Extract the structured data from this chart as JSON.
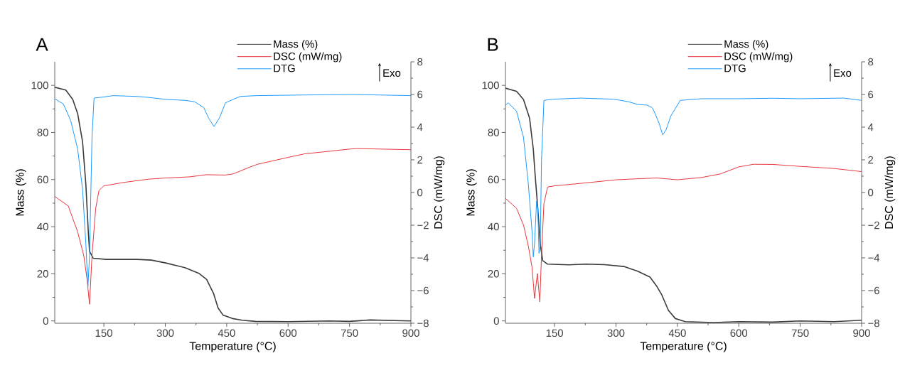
{
  "chart_data": [
    {
      "type": "line",
      "title": "A",
      "xlabel": "Temperature (°C)",
      "ylabel": "Mass (%)",
      "y2label": "DSC (mW/mg)",
      "annotations": [
        "Exo"
      ],
      "legend": "top right",
      "xlim": [
        30,
        900
      ],
      "xticks": [
        150,
        300,
        450,
        600,
        750,
        900
      ],
      "ylim": [
        -1,
        110
      ],
      "yticks": [
        0,
        20,
        40,
        60,
        80,
        100
      ],
      "y2lim": [
        -8,
        8
      ],
      "y2ticks": [
        {
          "value": -8,
          "label": "−8"
        },
        {
          "value": -6,
          "label": "−6"
        },
        {
          "value": -4,
          "label": "−4"
        },
        {
          "value": -2,
          "label": "−2"
        },
        0,
        2,
        4,
        6,
        8
      ],
      "series": [
        {
          "name": "Mass (%)",
          "color": "#3c3c3c",
          "x": [
            30,
            57,
            74,
            86,
            98,
            106,
            112,
            115,
            124,
            156,
            231,
            266,
            301,
            348,
            383,
            401,
            418,
            429,
            441,
            464,
            488,
            520,
            600,
            700,
            750,
            800,
            900
          ],
          "values": [
            99.2,
            98,
            94,
            88,
            76,
            58,
            37.7,
            29.6,
            26.6,
            26.1,
            26.1,
            25.8,
            24.6,
            22.6,
            20.1,
            17.6,
            11.6,
            5.5,
            2.5,
            1,
            0.3,
            -0.2,
            -0.3,
            0,
            -0.2,
            0.4,
            0
          ]
        },
        {
          "name": "DSC (mW/mg)",
          "color": "#e8383d",
          "axis": "y2",
          "x": [
            30,
            63,
            86,
            101,
            109,
            115,
            121,
            130,
            138,
            150,
            202,
            260,
            301,
            360,
            401,
            447,
            466,
            501,
            524,
            600,
            641,
            699,
            750,
            769,
            900
          ],
          "values": [
            -0.24,
            -0.82,
            -2.41,
            -3.87,
            -5.32,
            -6.84,
            -3.87,
            -0.97,
            0.12,
            0.41,
            0.63,
            0.82,
            0.89,
            0.96,
            1.09,
            1.07,
            1.14,
            1.5,
            1.72,
            2.15,
            2.37,
            2.52,
            2.66,
            2.69,
            2.62
          ]
        },
        {
          "name": "DTG",
          "color": "#1e9bff",
          "axis": "y2",
          "x": [
            30,
            51,
            69,
            86,
            98,
            106,
            111,
            115,
            121,
            126,
            150,
            173,
            231,
            260,
            301,
            348,
            371,
            394,
            406,
            419,
            432,
            447,
            466,
            483,
            524,
            641,
            757,
            900
          ],
          "values": [
            5.74,
            5.42,
            4.4,
            2.66,
            0.19,
            -3.14,
            -5.82,
            -3.86,
            3.39,
            5.78,
            5.85,
            5.93,
            5.88,
            5.82,
            5.7,
            5.64,
            5.56,
            5.2,
            4.55,
            4.04,
            4.55,
            5.49,
            5.7,
            5.88,
            5.93,
            5.97,
            6.0,
            5.93
          ]
        }
      ]
    },
    {
      "type": "line",
      "title": "B",
      "xlabel": "Temperature (°C)",
      "ylabel": "Mass (%)",
      "y2label": "DSC (mW/mg)",
      "annotations": [
        "Exo"
      ],
      "legend": "top right",
      "xlim": [
        30,
        900
      ],
      "xticks": [
        150,
        300,
        450,
        600,
        750,
        900
      ],
      "ylim": [
        -1,
        110
      ],
      "yticks": [
        0,
        20,
        40,
        60,
        80,
        100
      ],
      "y2lim": [
        -8,
        8
      ],
      "y2ticks": [
        {
          "value": -8,
          "label": "−8"
        },
        {
          "value": -6,
          "label": "−6"
        },
        {
          "value": -4,
          "label": "−4"
        },
        {
          "value": -2,
          "label": "−2"
        },
        0,
        2,
        4,
        6,
        8
      ],
      "series": [
        {
          "name": "Mass (%)",
          "color": "#3c3c3c",
          "x": [
            30,
            57,
            74,
            89,
            98,
            103,
            109,
            115,
            121,
            133,
            185,
            226,
            272,
            319,
            353,
            383,
            400,
            412,
            428,
            445,
            469,
            538,
            600,
            683,
            750,
            833,
            900
          ],
          "values": [
            98.8,
            97.5,
            94,
            86,
            72.9,
            60.8,
            47.7,
            32.7,
            25.6,
            24.1,
            23.8,
            24.1,
            23.9,
            23.1,
            21.1,
            18.6,
            14.6,
            11,
            4.5,
            1,
            -0.3,
            -0.7,
            -0.3,
            -0.5,
            0,
            -0.3,
            0.3
          ]
        },
        {
          "name": "DSC (mW/mg)",
          "color": "#e8383d",
          "axis": "y2",
          "x": [
            30,
            57,
            74,
            86,
            95,
            101,
            108,
            114,
            118,
            124,
            133,
            150,
            214,
            301,
            360,
            400,
            450,
            509,
            555,
            600,
            636,
            683,
            750,
            833,
            900
          ],
          "values": [
            -0.35,
            -0.97,
            -1.98,
            -3.29,
            -4.59,
            -6.48,
            -4.96,
            -6.7,
            -3.87,
            -0.68,
            0.34,
            0.41,
            0.56,
            0.78,
            0.85,
            0.89,
            0.78,
            0.92,
            1.14,
            1.57,
            1.73,
            1.72,
            1.6,
            1.47,
            1.28
          ]
        },
        {
          "name": "DTG",
          "color": "#1e9bff",
          "axis": "y2",
          "x": [
            30,
            37,
            57,
            74,
            86,
            95,
            98,
            101,
            106,
            109,
            112,
            115,
            118,
            124,
            144,
            214,
            295,
            330,
            353,
            376,
            388,
            393,
            405,
            414,
            422,
            434,
            457,
            509,
            600,
            683,
            750,
            857,
            900
          ],
          "values": [
            5.35,
            5.49,
            4.98,
            3.39,
            0.49,
            -2.41,
            -3.94,
            -3.14,
            -0.52,
            -0.97,
            -3.72,
            -3.28,
            1.94,
            5.64,
            5.71,
            5.78,
            5.71,
            5.56,
            5.39,
            5.35,
            5.2,
            4.98,
            4.26,
            3.53,
            3.82,
            4.69,
            5.64,
            5.74,
            5.74,
            5.77,
            5.74,
            5.78,
            5.64
          ]
        }
      ]
    }
  ]
}
